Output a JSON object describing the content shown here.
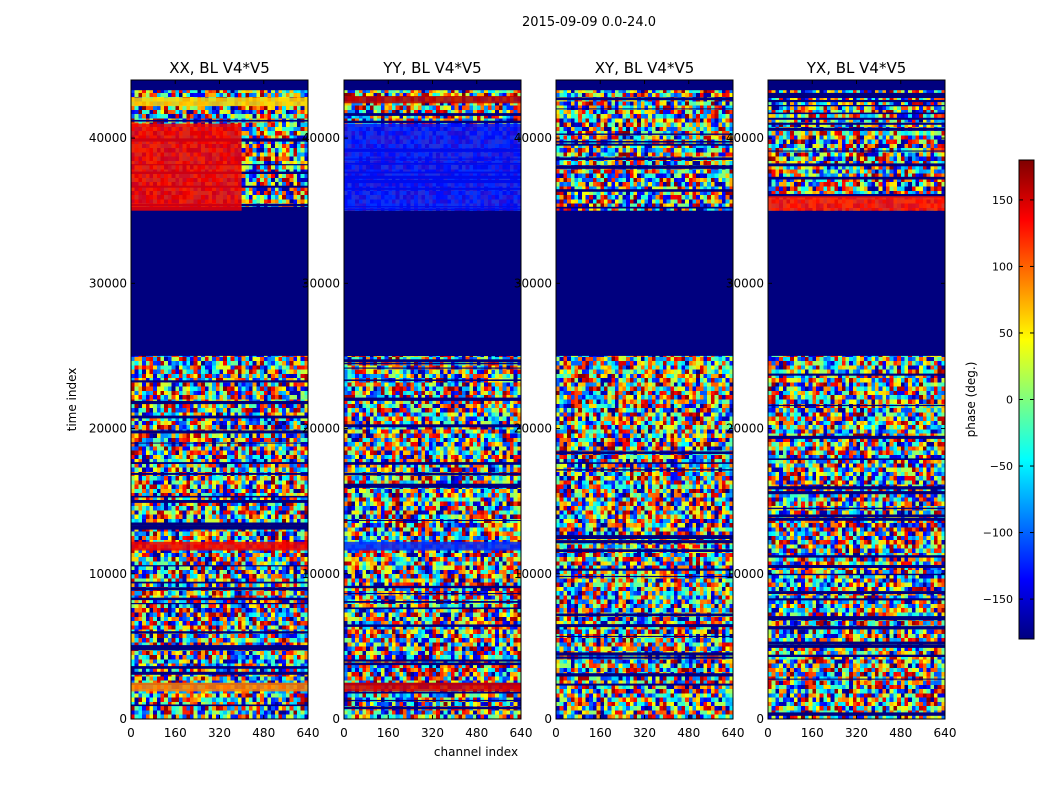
{
  "figure": {
    "suptitle": "2015-09-09 0.0-24.0"
  },
  "colorbar": {
    "label": "phase (deg.)",
    "range": [
      -180,
      180
    ],
    "ticks": [
      150,
      100,
      50,
      0,
      -50,
      -100,
      -150
    ],
    "tick_labels": [
      "150",
      "100",
      "50",
      "0",
      "−50",
      "−100",
      "−150"
    ],
    "colormap": [
      "#00007f",
      "#0000ff",
      "#007fff",
      "#00ffff",
      "#7fff7f",
      "#ffff00",
      "#ff7f00",
      "#ff0000",
      "#7f0000"
    ]
  },
  "chart_data": [
    {
      "type": "heatmap",
      "title": "XX, BL V4*V5",
      "xlabel": "",
      "ylabel": "time index",
      "xlim": [
        0,
        640
      ],
      "ylim": [
        0,
        44000
      ],
      "xticks": [
        0,
        160,
        320,
        480,
        640
      ],
      "yticks": [
        0,
        10000,
        20000,
        30000,
        40000
      ],
      "value_label": "phase (deg.)",
      "regions": [
        {
          "y": [
            25000,
            35000
          ],
          "x": [
            0,
            640
          ],
          "phase": -180
        },
        {
          "y": [
            43300,
            44000
          ],
          "x": [
            0,
            640
          ],
          "phase": -180
        },
        {
          "y": [
            42200,
            42800
          ],
          "x": [
            0,
            640
          ],
          "phase": 60
        },
        {
          "y": [
            35000,
            41000
          ],
          "x": [
            0,
            400
          ],
          "phase": 140
        },
        {
          "y": [
            11600,
            12200
          ],
          "x": [
            0,
            640
          ],
          "phase": 140
        },
        {
          "y": [
            1900,
            2500
          ],
          "x": [
            0,
            640
          ],
          "phase": 90
        }
      ]
    },
    {
      "type": "heatmap",
      "title": "YY, BL V4*V5",
      "xlabel": "channel index",
      "ylabel": "",
      "xlim": [
        0,
        640
      ],
      "ylim": [
        0,
        44000
      ],
      "xticks": [
        0,
        160,
        320,
        480,
        640
      ],
      "yticks": [
        0,
        10000,
        20000,
        30000,
        40000
      ],
      "value_label": "phase (deg.)",
      "regions": [
        {
          "y": [
            25000,
            35000
          ],
          "x": [
            0,
            640
          ],
          "phase": -180
        },
        {
          "y": [
            43300,
            44000
          ],
          "x": [
            0,
            640
          ],
          "phase": -180
        },
        {
          "y": [
            42400,
            42900
          ],
          "x": [
            0,
            640
          ],
          "phase": 160
        },
        {
          "y": [
            35000,
            41000
          ],
          "x": [
            0,
            640
          ],
          "phase": -130
        },
        {
          "y": [
            11600,
            12200
          ],
          "x": [
            0,
            640
          ],
          "phase": -120
        },
        {
          "y": [
            1900,
            2500
          ],
          "x": [
            0,
            640
          ],
          "phase": 150
        }
      ]
    },
    {
      "type": "heatmap",
      "title": "XY, BL V4*V5",
      "xlabel": "",
      "ylabel": "",
      "xlim": [
        0,
        640
      ],
      "ylim": [
        0,
        44000
      ],
      "xticks": [
        0,
        160,
        320,
        480,
        640
      ],
      "yticks": [
        0,
        10000,
        20000,
        30000,
        40000
      ],
      "value_label": "phase (deg.)",
      "regions": [
        {
          "y": [
            25000,
            35000
          ],
          "x": [
            0,
            640
          ],
          "phase": -180
        },
        {
          "y": [
            43300,
            44000
          ],
          "x": [
            0,
            640
          ],
          "phase": -180
        }
      ]
    },
    {
      "type": "heatmap",
      "title": "YX, BL V4*V5",
      "xlabel": "",
      "ylabel": "",
      "xlim": [
        0,
        640
      ],
      "ylim": [
        0,
        44000
      ],
      "xticks": [
        0,
        160,
        320,
        480,
        640
      ],
      "yticks": [
        0,
        10000,
        20000,
        30000,
        40000
      ],
      "value_label": "phase (deg.)",
      "regions": [
        {
          "y": [
            25000,
            35000
          ],
          "x": [
            0,
            640
          ],
          "phase": -180
        },
        {
          "y": [
            43300,
            44000
          ],
          "x": [
            0,
            640
          ],
          "phase": -180
        },
        {
          "y": [
            35000,
            36000
          ],
          "x": [
            0,
            640
          ],
          "phase": 130
        }
      ]
    }
  ]
}
